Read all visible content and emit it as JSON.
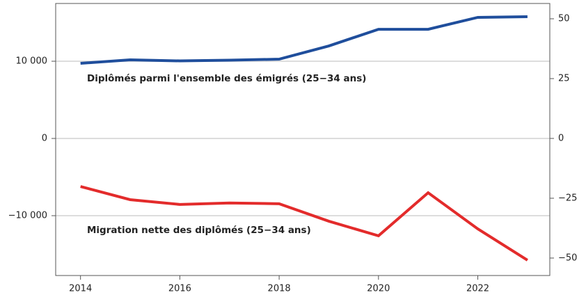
{
  "chart_data": {
    "type": "line",
    "x": [
      2014,
      2015,
      2016,
      2017,
      2018,
      2019,
      2020,
      2021,
      2022,
      2023
    ],
    "xlim": [
      2013.5,
      2023.45
    ],
    "xticks": [
      2014,
      2016,
      2018,
      2020,
      2022
    ],
    "ylim": [
      -17750,
      17480
    ],
    "yticks": [
      {
        "value": -10000,
        "label": "−10 000"
      },
      0,
      {
        "value": 10000,
        "label": "10 000"
      }
    ],
    "y2lim": [
      -57.3,
      56.4
    ],
    "y2ticks": [
      {
        "value": -50,
        "label": "−50"
      },
      {
        "value": -25,
        "label": "−25"
      },
      0,
      25,
      50
    ],
    "grid": true,
    "series": [
      {
        "name": "Diplômés parmi l'ensemble des émigrés (25−34 ans)",
        "color": "#1f4e9c",
        "values": [
          9730,
          10180,
          10045,
          10135,
          10270,
          11980,
          14140,
          14140,
          15680,
          15770
        ]
      },
      {
        "name": "Migration nette des diplômés (25−34 ans)",
        "color": "#e32b2b",
        "axis": "y2",
        "values": [
          -20.1,
          -25.6,
          -27.6,
          -27.0,
          -27.3,
          -34.6,
          -40.7,
          -22.7,
          -37.8,
          -50.9
        ]
      }
    ]
  }
}
